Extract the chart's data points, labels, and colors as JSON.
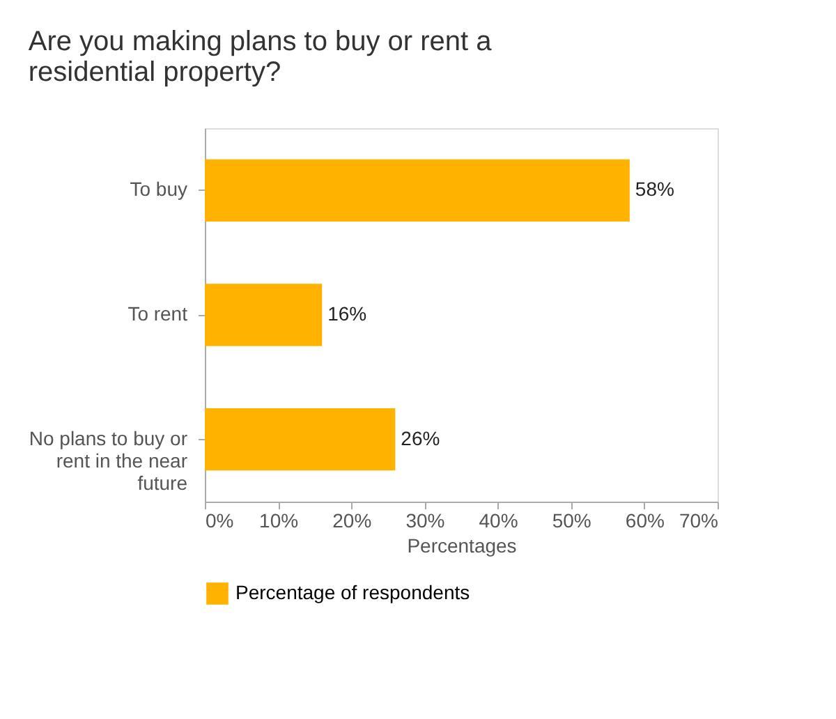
{
  "chart_data": {
    "type": "bar",
    "orientation": "horizontal",
    "title": "Are you making plans to buy or rent a residential property?",
    "categories": [
      "To buy",
      "To rent",
      "No plans to buy or rent in the near future"
    ],
    "series": [
      {
        "name": "Percentage of respondents",
        "color": "#ffb300",
        "values": [
          58,
          16,
          26
        ],
        "value_labels": [
          "58%",
          "16%",
          "26%"
        ]
      }
    ],
    "xlabel": "Percentages",
    "xlim": [
      0,
      70
    ],
    "xticks": [
      {
        "value": 0,
        "label": "0%"
      },
      {
        "value": 10,
        "label": "10%"
      },
      {
        "value": 20,
        "label": "20%"
      },
      {
        "value": 30,
        "label": "30%"
      },
      {
        "value": 40,
        "label": "40%"
      },
      {
        "value": 50,
        "label": "50%"
      },
      {
        "value": 60,
        "label": "60%"
      },
      {
        "value": 70,
        "label": "70%"
      }
    ],
    "grid": false,
    "legend": "bottom"
  }
}
